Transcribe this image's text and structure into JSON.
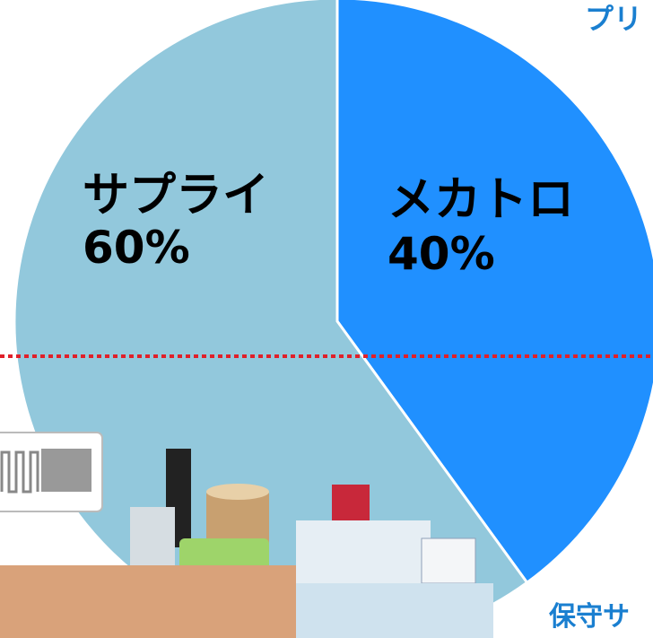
{
  "chart_data": {
    "type": "pie",
    "categories": [
      "メカトロ",
      "サプライ"
    ],
    "values": [
      40,
      60
    ],
    "value_labels": [
      "40%",
      "60%"
    ],
    "colors": [
      "#2090ff",
      "#92c8dc"
    ],
    "annotations": [
      "プリ",
      "保守サ"
    ]
  }
}
